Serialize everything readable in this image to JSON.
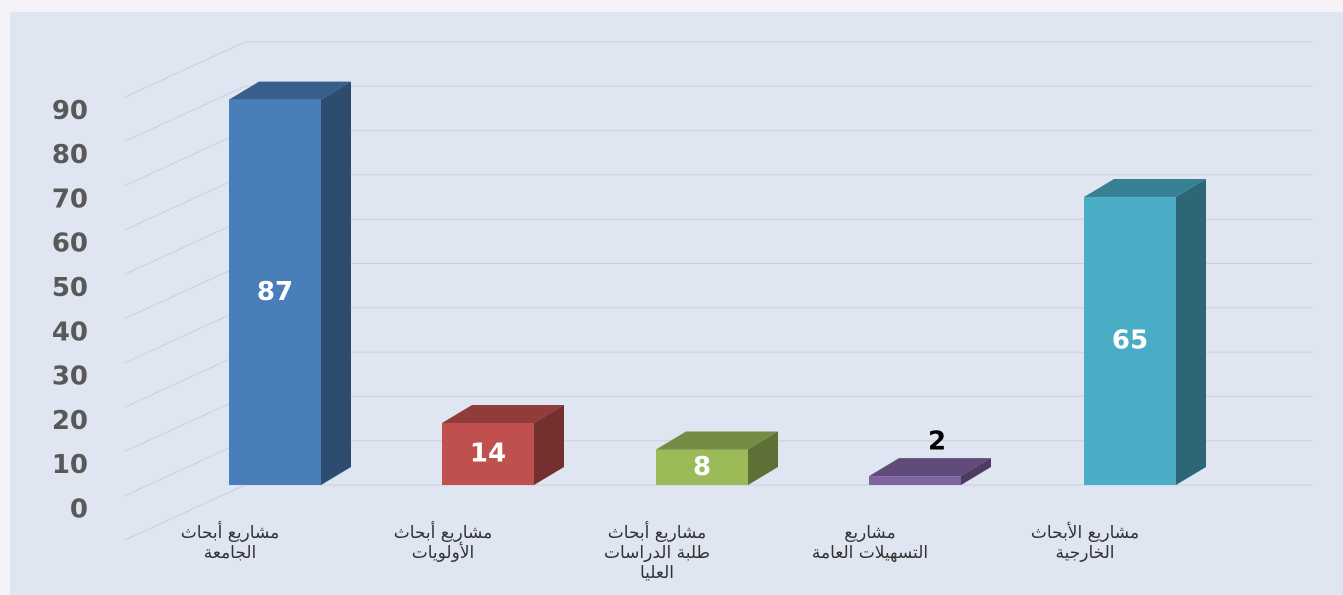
{
  "chart_data": {
    "type": "bar3d",
    "categories": [
      "مشاريع أبحاث\nالجامعة",
      "مشاريع أبحاث\nالأولويات",
      "مشاريع أبحاث\nطلبة الدراسات\nالعليا",
      "مشاريع\nالتسهيلات العامة",
      "مشاريع الأبحاث\nالخارجية"
    ],
    "values": [
      87,
      14,
      8,
      2,
      65
    ],
    "colors": [
      "#4a7ebb",
      "#c0504d",
      "#9bbb59",
      "#8064a2",
      "#4bacc6"
    ],
    "ylim": [
      0,
      100
    ],
    "yticks": [
      0,
      10,
      20,
      30,
      40,
      50,
      60,
      70,
      80,
      90
    ],
    "grid": true
  }
}
